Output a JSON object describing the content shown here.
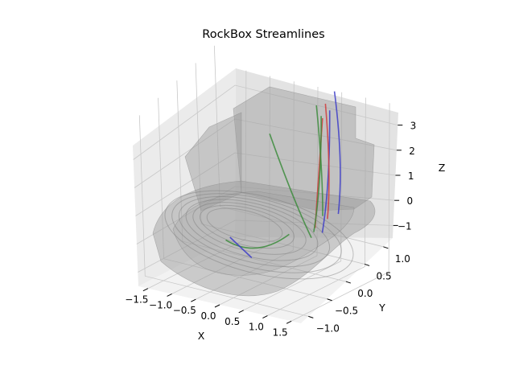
{
  "title": "RockBox Streamlines",
  "chart_data": {
    "type": "3d-line",
    "title": "RockBox Streamlines",
    "xlabel": "X",
    "ylabel": "Y",
    "zlabel": "Z",
    "xlim": [
      -1.7,
      1.7
    ],
    "ylim": [
      -1.2,
      1.25
    ],
    "zlim": [
      -1.5,
      3.5
    ],
    "x_ticks": [
      "−1.5",
      "−1.0",
      "−0.5",
      "0.0",
      "0.5",
      "1.0",
      "1.5"
    ],
    "y_ticks": [
      "−1.0",
      "−0.5",
      "0.0",
      "0.5",
      "1.0"
    ],
    "z_ticks": [
      "−1",
      "0",
      "1",
      "2",
      "3"
    ],
    "grid": true,
    "colors": {
      "pane_left": "#ebebeb",
      "pane_right": "#e3e3e3",
      "pane_floor": "#f2f2f2",
      "surface": "#9a9a9a",
      "blue": "#3c3cc8",
      "red": "#d03c3c",
      "green": "#3c8c3c"
    },
    "series": [
      {
        "color": "blue",
        "points": [
          [
            0.52,
            1.2,
            2.8
          ],
          [
            0.95,
            0.9,
            1.0
          ],
          [
            1.15,
            0.5,
            -0.1
          ]
        ]
      },
      {
        "color": "blue",
        "points": [
          [
            0.5,
            1.1,
            2.3
          ],
          [
            0.9,
            0.6,
            0.6
          ],
          [
            1.05,
            0.2,
            -0.4
          ]
        ]
      },
      {
        "color": "red",
        "points": [
          [
            0.45,
            1.05,
            2.55
          ],
          [
            0.85,
            0.7,
            0.8
          ],
          [
            1.0,
            0.4,
            -0.2
          ]
        ]
      },
      {
        "color": "red",
        "points": [
          [
            0.35,
            1.1,
            2.0
          ],
          [
            0.65,
            0.6,
            0.5
          ],
          [
            0.9,
            0.2,
            -0.3
          ]
        ]
      },
      {
        "color": "green",
        "points": [
          [
            0.4,
            1.0,
            2.2
          ],
          [
            0.8,
            0.5,
            0.7
          ],
          [
            0.95,
            0.1,
            -0.3
          ]
        ]
      },
      {
        "color": "green",
        "points": [
          [
            0.3,
            1.0,
            2.5
          ],
          [
            0.75,
            0.6,
            1.0
          ],
          [
            0.98,
            0.3,
            0.0
          ]
        ]
      },
      {
        "color": "green",
        "points": [
          [
            -0.6,
            0.9,
            1.4
          ],
          [
            0.3,
            0.4,
            0.1
          ],
          [
            0.9,
            0.1,
            -0.5
          ]
        ]
      },
      {
        "color": "green",
        "points": [
          [
            -0.5,
            -0.4,
            -0.5
          ],
          [
            0.3,
            -0.6,
            -0.6
          ],
          [
            0.75,
            -0.3,
            0.0
          ]
        ]
      },
      {
        "color": "blue",
        "points": [
          [
            -0.45,
            -0.35,
            -0.45
          ],
          [
            0.2,
            -0.6,
            -0.6
          ]
        ]
      }
    ],
    "surfaces": [
      "rock box hull",
      "box lid",
      "bowl rings"
    ]
  }
}
